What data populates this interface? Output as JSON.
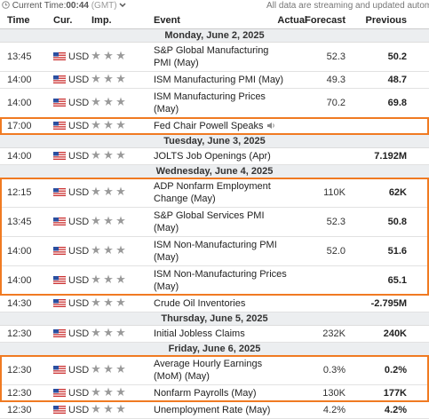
{
  "top_bar": {
    "current_time_label": "Current Time:",
    "current_time": "00:44",
    "timezone": "(GMT)",
    "notice": "All data are streaming and updated automatically"
  },
  "table": {
    "columns": [
      "Time",
      "Cur.",
      "Imp.",
      "Event",
      "Actual",
      "Forecast",
      "Previous"
    ],
    "days": [
      {
        "date": "Monday, June 2, 2025",
        "events": [
          {
            "time": "13:45",
            "currency": "USD",
            "event": "S&P Global Manufacturing PMI (May)",
            "forecast": "52.3",
            "previous": "50.2"
          },
          {
            "time": "14:00",
            "currency": "USD",
            "event": "ISM Manufacturing PMI (May)",
            "forecast": "49.3",
            "previous": "48.7"
          },
          {
            "time": "14:00",
            "currency": "USD",
            "event": "ISM Manufacturing Prices (May)",
            "forecast": "70.2",
            "previous": "69.8"
          },
          {
            "time": "17:00",
            "currency": "USD",
            "event": "Fed Chair Powell Speaks",
            "speech": true,
            "highlighted": true
          }
        ]
      },
      {
        "date": "Tuesday, June 3, 2025",
        "events": [
          {
            "time": "14:00",
            "currency": "USD",
            "event": "JOLTS Job Openings (Apr)",
            "previous": "7.192M"
          }
        ]
      },
      {
        "date": "Wednesday, June 4, 2025",
        "events": [
          {
            "time": "12:15",
            "currency": "USD",
            "event": "ADP Nonfarm Employment Change (May)",
            "forecast": "110K",
            "previous": "62K",
            "highlighted": true
          },
          {
            "time": "13:45",
            "currency": "USD",
            "event": "S&P Global Services PMI (May)",
            "forecast": "52.3",
            "previous": "50.8",
            "highlighted": true
          },
          {
            "time": "14:00",
            "currency": "USD",
            "event": "ISM Non-Manufacturing PMI (May)",
            "forecast": "52.0",
            "previous": "51.6",
            "highlighted": true
          },
          {
            "time": "14:00",
            "currency": "USD",
            "event": "ISM Non-Manufacturing Prices (May)",
            "previous": "65.1",
            "highlighted": true
          },
          {
            "time": "14:30",
            "currency": "USD",
            "event": "Crude Oil Inventories",
            "previous": "-2.795M"
          }
        ]
      },
      {
        "date": "Thursday, June 5, 2025",
        "events": [
          {
            "time": "12:30",
            "currency": "USD",
            "event": "Initial Jobless Claims",
            "forecast": "232K",
            "previous": "240K"
          }
        ]
      },
      {
        "date": "Friday, June 6, 2025",
        "events": [
          {
            "time": "12:30",
            "currency": "USD",
            "event": "Average Hourly Earnings (MoM) (May)",
            "forecast": "0.3%",
            "previous": "0.2%",
            "highlighted": true
          },
          {
            "time": "12:30",
            "currency": "USD",
            "event": "Nonfarm Payrolls (May)",
            "forecast": "130K",
            "previous": "177K",
            "highlighted": true
          },
          {
            "time": "12:30",
            "currency": "USD",
            "event": "Unemployment Rate (May)",
            "forecast": "4.2%",
            "previous": "4.2%",
            "highlighted": true
          }
        ]
      }
    ]
  }
}
